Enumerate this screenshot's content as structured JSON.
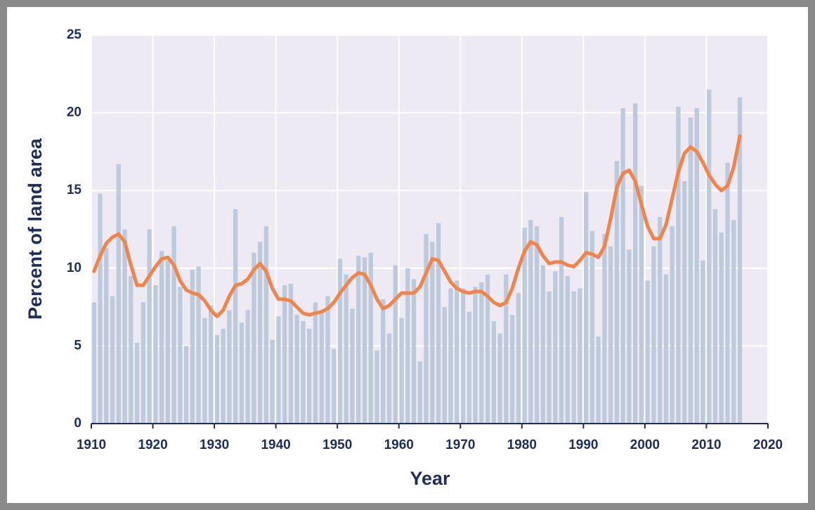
{
  "chart_data": {
    "type": "bar",
    "x_label": "Year",
    "y_label": "Percent of land area",
    "x": [
      1910,
      1911,
      1912,
      1913,
      1914,
      1915,
      1916,
      1917,
      1918,
      1919,
      1920,
      1921,
      1922,
      1923,
      1924,
      1925,
      1926,
      1927,
      1928,
      1929,
      1930,
      1931,
      1932,
      1933,
      1934,
      1935,
      1936,
      1937,
      1938,
      1939,
      1940,
      1941,
      1942,
      1943,
      1944,
      1945,
      1946,
      1947,
      1948,
      1949,
      1950,
      1951,
      1952,
      1953,
      1954,
      1955,
      1956,
      1957,
      1958,
      1959,
      1960,
      1961,
      1962,
      1963,
      1964,
      1965,
      1966,
      1967,
      1968,
      1969,
      1970,
      1971,
      1972,
      1973,
      1974,
      1975,
      1976,
      1977,
      1978,
      1979,
      1980,
      1981,
      1982,
      1983,
      1984,
      1985,
      1986,
      1987,
      1988,
      1989,
      1990,
      1991,
      1992,
      1993,
      1994,
      1995,
      1996,
      1997,
      1998,
      1999,
      2000,
      2001,
      2002,
      2003,
      2004,
      2005,
      2006,
      2007,
      2008,
      2009,
      2010,
      2011,
      2012,
      2013,
      2014,
      2015
    ],
    "series": [
      {
        "type": "bar",
        "color": "#bccadc",
        "values": [
          7.8,
          14.8,
          11.3,
          8.2,
          16.7,
          12.5,
          9.5,
          5.2,
          7.8,
          12.5,
          8.9,
          11.1,
          10.5,
          12.7,
          8.8,
          5.0,
          9.9,
          10.1,
          6.8,
          7.6,
          5.7,
          6.1,
          7.3,
          13.8,
          6.5,
          7.3,
          11.0,
          11.7,
          12.7,
          5.4,
          6.9,
          8.9,
          9.0,
          7.0,
          6.6,
          6.1,
          7.8,
          7.2,
          8.2,
          4.8,
          10.6,
          9.6,
          7.4,
          10.8,
          10.7,
          11.0,
          4.7,
          8.0,
          5.8,
          10.2,
          6.8,
          10.0,
          9.3,
          4.0,
          12.2,
          11.7,
          12.9,
          7.5,
          8.7,
          9.2,
          8.7,
          7.2,
          8.8,
          9.1,
          9.6,
          6.6,
          5.8,
          9.6,
          7.0,
          8.4,
          12.6,
          13.1,
          12.7,
          10.2,
          8.5,
          9.8,
          13.3,
          9.5,
          8.5,
          8.7,
          14.9,
          12.4,
          5.6,
          12.2,
          11.4,
          16.9,
          20.3,
          11.2,
          20.6,
          15.3,
          9.2,
          11.4,
          13.3,
          9.6,
          12.7,
          20.4,
          15.6,
          19.7,
          20.3,
          10.5,
          21.5,
          13.8,
          12.3,
          16.8,
          13.1,
          21.0
        ]
      },
      {
        "type": "line",
        "color": "#f0844a",
        "values": [
          9.8,
          10.8,
          11.6,
          12.0,
          12.2,
          11.7,
          10.2,
          8.9,
          8.9,
          9.5,
          10.1,
          10.6,
          10.7,
          10.2,
          9.2,
          8.6,
          8.4,
          8.3,
          7.9,
          7.3,
          6.9,
          7.3,
          8.2,
          8.9,
          9.0,
          9.3,
          9.9,
          10.3,
          9.8,
          8.7,
          8.0,
          8.0,
          7.9,
          7.5,
          7.1,
          7.0,
          7.1,
          7.2,
          7.4,
          7.8,
          8.4,
          8.9,
          9.4,
          9.7,
          9.6,
          8.9,
          8.0,
          7.4,
          7.6,
          8.0,
          8.4,
          8.4,
          8.4,
          8.8,
          9.7,
          10.6,
          10.5,
          9.8,
          9.1,
          8.7,
          8.5,
          8.4,
          8.5,
          8.5,
          8.2,
          7.8,
          7.6,
          7.8,
          8.7,
          10.0,
          11.1,
          11.7,
          11.5,
          10.8,
          10.3,
          10.4,
          10.4,
          10.2,
          10.1,
          10.5,
          11.0,
          10.9,
          10.7,
          11.4,
          13.2,
          15.2,
          16.1,
          16.3,
          15.6,
          14.1,
          12.7,
          11.9,
          11.9,
          12.8,
          14.5,
          16.2,
          17.4,
          17.8,
          17.5,
          16.8,
          16.0,
          15.4,
          15.0,
          15.3,
          16.5,
          18.5
        ]
      }
    ],
    "xlim": [
      1910,
      2020
    ],
    "xticks": [
      1910,
      1920,
      1930,
      1940,
      1950,
      1960,
      1970,
      1980,
      1990,
      2000,
      2010,
      2020
    ],
    "ylim": [
      0,
      25
    ],
    "yticks": [
      0,
      5,
      10,
      15,
      20,
      25
    ],
    "grid": true,
    "background": "#eeeaf3"
  }
}
